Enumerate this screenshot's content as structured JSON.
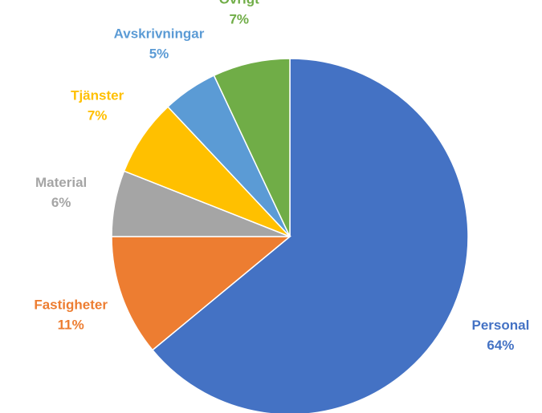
{
  "chart_data": {
    "type": "pie",
    "categories": [
      "Personal",
      "Fastigheter",
      "Material",
      "Tjänster",
      "Avskrivningar",
      "Övrigt"
    ],
    "values": [
      64,
      11,
      6,
      7,
      5,
      7
    ],
    "value_labels": [
      "64%",
      "11%",
      "6%",
      "7%",
      "5%",
      "7%"
    ],
    "colors": [
      "#4472c4",
      "#ed7d31",
      "#a5a5a5",
      "#ffc000",
      "#5b9bd5",
      "#70ad47"
    ]
  }
}
